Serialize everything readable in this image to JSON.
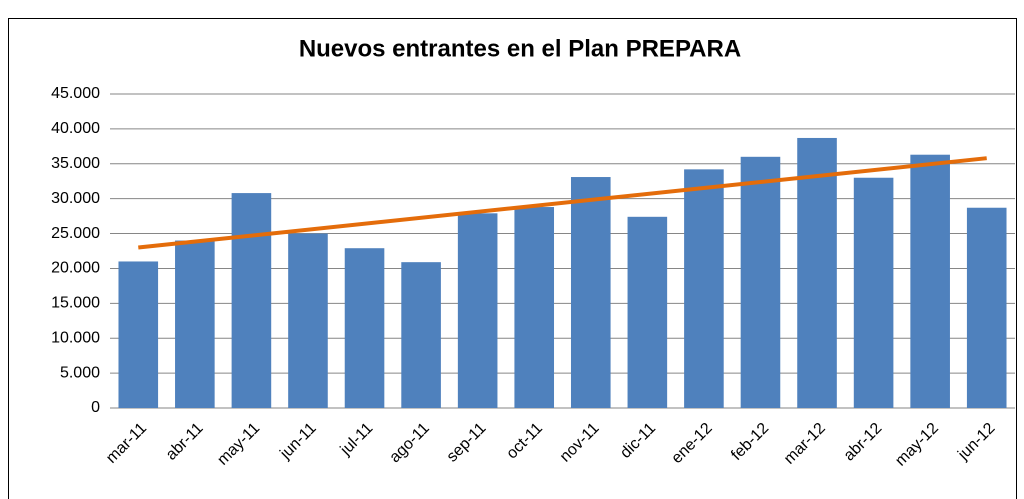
{
  "chart_data": {
    "type": "bar",
    "title": "Nuevos entrantes en el Plan PREPARA",
    "categories": [
      "mar-11",
      "abr-11",
      "may-11",
      "jun-11",
      "jul-11",
      "ago-11",
      "sep-11",
      "oct-11",
      "nov-11",
      "dic-11",
      "ene-12",
      "feb-12",
      "mar-12",
      "abr-12",
      "may-12",
      "jun-12"
    ],
    "values": [
      21000,
      24000,
      30800,
      25000,
      22900,
      20900,
      27900,
      28800,
      33100,
      27400,
      34200,
      36000,
      38700,
      33000,
      36300,
      28700
    ],
    "color": "#4f81bd",
    "trendline": {
      "color": "#e46c0a",
      "values": [
        23000,
        35800
      ]
    },
    "ylim": [
      0,
      45000
    ],
    "yticks": [
      0,
      {
        "value": 5000,
        "label": "5.000"
      },
      {
        "value": 10000,
        "label": "10.000"
      },
      {
        "value": 15000,
        "label": "15.000"
      },
      {
        "value": 20000,
        "label": "20.000"
      },
      {
        "value": 25000,
        "label": "25.000"
      },
      {
        "value": 30000,
        "label": "30.000"
      },
      {
        "value": 35000,
        "label": "35.000"
      },
      {
        "value": 40000,
        "label": "40.000"
      },
      {
        "value": 45000,
        "label": "45.000"
      }
    ],
    "grid": true
  }
}
